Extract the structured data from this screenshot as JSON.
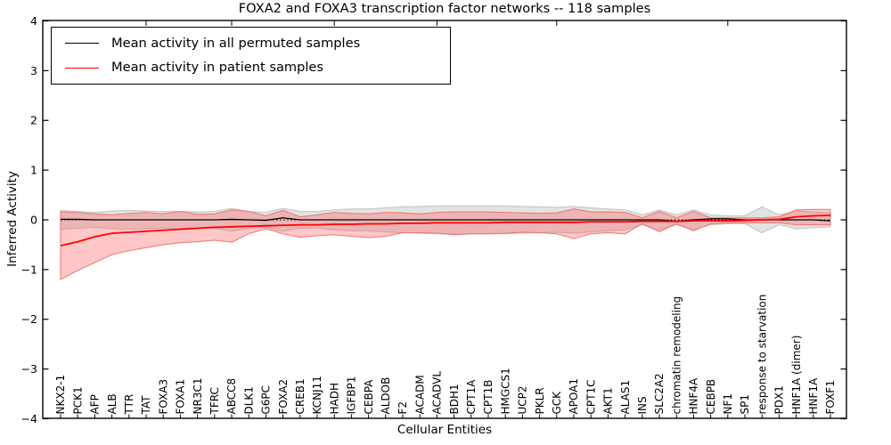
{
  "chart_data": {
    "type": "line",
    "title": "FOXA2 and FOXA3 transcription factor networks -- 118 samples",
    "xlabel": "Cellular Entities",
    "ylabel": "Inferred Activity",
    "ylim": [
      -4,
      4
    ],
    "yticks": [
      -4,
      -3,
      -2,
      -1,
      0,
      1,
      2,
      3,
      4
    ],
    "grid": false,
    "legend_position": "upper left",
    "zero_line_style": "dotted",
    "categories": [
      "NKX2-1",
      "PCK1",
      "AFP",
      "ALB",
      "TTR",
      "TAT",
      "FOXA3",
      "FOXA1",
      "NR3C1",
      "TFRC",
      "ABCC8",
      "DLK1",
      "G6PC",
      "FOXA2",
      "CREB1",
      "KCNJ11",
      "HADH",
      "IGFBP1",
      "CEBPA",
      "ALDOB",
      "F2",
      "ACADM",
      "ACADVL",
      "BDH1",
      "CPT1A",
      "CPT1B",
      "HMGCS1",
      "UCP2",
      "PKLR",
      "GCK",
      "APOA1",
      "CPT1C",
      "AKT1",
      "ALAS1",
      "INS",
      "SLC2A2",
      "chromatin remodeling",
      "HNF4A",
      "CEBPB",
      "NF1",
      "SP1",
      "response to starvation",
      "PDX1",
      "HNF1A (dimer)",
      "HNF1A",
      "FOXF1"
    ],
    "top_tick_indices": [
      5,
      10,
      16,
      22,
      29,
      39
    ],
    "series": [
      {
        "name": "Mean activity in all permuted samples",
        "color": "#000000",
        "band_color": "#cccccc",
        "values": [
          0.01,
          0.01,
          0.0,
          0.0,
          0.0,
          0.0,
          0.0,
          0.0,
          0.0,
          0.0,
          0.01,
          0.0,
          -0.01,
          0.04,
          0.0,
          0.0,
          0.0,
          0.0,
          0.0,
          0.0,
          0.0,
          0.0,
          0.0,
          0.0,
          0.0,
          0.0,
          0.0,
          0.0,
          0.0,
          0.0,
          0.0,
          0.0,
          0.0,
          0.0,
          0.0,
          0.0,
          -0.03,
          0.0,
          0.02,
          0.02,
          0.0,
          0.0,
          0.0,
          0.0,
          0.0,
          -0.02
        ],
        "band_upper": [
          0.19,
          0.17,
          0.15,
          0.18,
          0.19,
          0.18,
          0.17,
          0.17,
          0.16,
          0.17,
          0.23,
          0.17,
          0.15,
          0.23,
          0.17,
          0.17,
          0.2,
          0.22,
          0.22,
          0.24,
          0.26,
          0.27,
          0.28,
          0.28,
          0.28,
          0.28,
          0.28,
          0.27,
          0.26,
          0.25,
          0.27,
          0.24,
          0.22,
          0.2,
          0.1,
          0.2,
          0.1,
          0.2,
          0.1,
          0.08,
          0.08,
          0.26,
          0.1,
          0.18,
          0.16,
          0.14
        ],
        "band_lower": [
          -0.19,
          -0.17,
          -0.15,
          -0.18,
          -0.19,
          -0.18,
          -0.17,
          -0.17,
          -0.16,
          -0.17,
          -0.23,
          -0.17,
          -0.15,
          -0.23,
          -0.17,
          -0.17,
          -0.2,
          -0.22,
          -0.22,
          -0.24,
          -0.26,
          -0.27,
          -0.28,
          -0.28,
          -0.28,
          -0.28,
          -0.28,
          -0.27,
          -0.26,
          -0.25,
          -0.27,
          -0.24,
          -0.22,
          -0.2,
          -0.1,
          -0.2,
          -0.1,
          -0.2,
          -0.1,
          -0.08,
          -0.08,
          -0.26,
          -0.1,
          -0.18,
          -0.16,
          -0.14
        ]
      },
      {
        "name": "Mean activity in patient samples",
        "color": "#ff0000",
        "band_color": "#ff5252",
        "values": [
          -0.52,
          -0.44,
          -0.34,
          -0.27,
          -0.25,
          -0.23,
          -0.21,
          -0.19,
          -0.17,
          -0.15,
          -0.14,
          -0.13,
          -0.12,
          -0.11,
          -0.1,
          -0.1,
          -0.09,
          -0.09,
          -0.08,
          -0.08,
          -0.07,
          -0.07,
          -0.06,
          -0.06,
          -0.06,
          -0.06,
          -0.05,
          -0.05,
          -0.05,
          -0.05,
          -0.05,
          -0.04,
          -0.04,
          -0.04,
          -0.03,
          -0.03,
          -0.03,
          -0.02,
          -0.02,
          -0.02,
          -0.01,
          0.0,
          0.01,
          0.06,
          0.08,
          0.09
        ],
        "band_upper": [
          0.16,
          0.15,
          0.12,
          0.1,
          0.13,
          0.15,
          0.12,
          0.17,
          0.11,
          0.12,
          0.2,
          0.17,
          0.08,
          0.19,
          0.06,
          0.1,
          0.15,
          0.13,
          0.12,
          0.15,
          0.14,
          0.12,
          0.15,
          0.16,
          0.16,
          0.16,
          0.15,
          0.14,
          0.13,
          0.14,
          0.22,
          0.16,
          0.16,
          0.15,
          0.04,
          0.17,
          0.04,
          0.17,
          0.04,
          0.04,
          0.04,
          0.04,
          0.06,
          0.2,
          0.21,
          0.21
        ],
        "band_lower": [
          -1.2,
          -1.02,
          -0.86,
          -0.7,
          -0.62,
          -0.56,
          -0.5,
          -0.46,
          -0.44,
          -0.41,
          -0.45,
          -0.28,
          -0.18,
          -0.28,
          -0.35,
          -0.32,
          -0.3,
          -0.33,
          -0.36,
          -0.33,
          -0.26,
          -0.26,
          -0.27,
          -0.3,
          -0.28,
          -0.28,
          -0.27,
          -0.25,
          -0.26,
          -0.28,
          -0.38,
          -0.28,
          -0.26,
          -0.28,
          -0.08,
          -0.24,
          -0.08,
          -0.22,
          -0.08,
          -0.06,
          -0.06,
          -0.06,
          -0.06,
          -0.1,
          -0.1,
          -0.1
        ]
      }
    ]
  },
  "colors": {
    "frame": "#000000",
    "background": "#ffffff",
    "patient_line": "#ff0000",
    "permuted_line": "#000000",
    "patient_band": "#ff5252",
    "permuted_band": "#cccccc"
  }
}
